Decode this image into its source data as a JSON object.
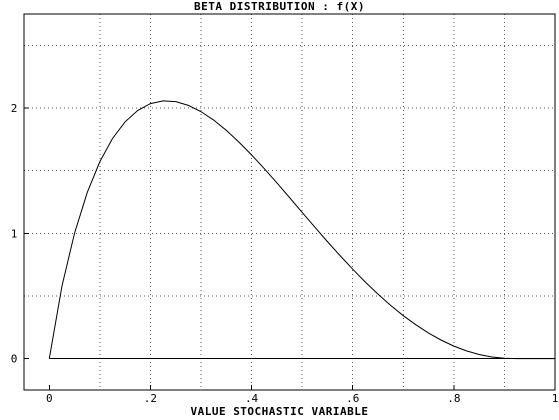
{
  "chart_data": {
    "type": "line",
    "title": "BETA DISTRIBUTION : f(X)",
    "xlabel": "VALUE STOCHASTIC VARIABLE",
    "ylabel": "",
    "xlim": [
      -0.05,
      1.0
    ],
    "ylim": [
      -0.25,
      2.75
    ],
    "x_ticks": [
      {
        "value": 0,
        "label": "0"
      },
      {
        "value": 0.2,
        "label": ".2"
      },
      {
        "value": 0.4,
        "label": ".4"
      },
      {
        "value": 0.6,
        "label": ".6"
      },
      {
        "value": 0.8,
        "label": ".8"
      },
      {
        "value": 1.0,
        "label": "1"
      }
    ],
    "y_ticks": [
      {
        "value": 0,
        "label": "0"
      },
      {
        "value": 1,
        "label": "1"
      },
      {
        "value": 2,
        "label": "2"
      }
    ],
    "x_gridlines": [
      0.1,
      0.2,
      0.3,
      0.4,
      0.5,
      0.6,
      0.7,
      0.8,
      0.9
    ],
    "y_gridlines": [
      0.5,
      1.0,
      1.5,
      2.0,
      2.5
    ],
    "grid": true,
    "grid_style": "dotted",
    "baseline": {
      "y": 0,
      "x_from": 0,
      "x_to": 1.0
    },
    "series": [
      {
        "x": [
          0,
          0.025,
          0.05,
          0.075,
          0.1,
          0.125,
          0.15,
          0.175,
          0.2,
          0.225,
          0.25,
          0.275,
          0.3,
          0.325,
          0.35,
          0.375,
          0.4,
          0.425,
          0.45,
          0.475,
          0.5,
          0.525,
          0.55,
          0.575,
          0.6,
          0.625,
          0.65,
          0.675,
          0.7,
          0.725,
          0.75,
          0.775,
          0.8,
          0.825,
          0.85,
          0.875,
          0.9,
          0.925,
          0.95,
          0.975,
          1.0
        ],
        "y": [
          0,
          0.578,
          1.002,
          1.325,
          1.572,
          1.757,
          1.89,
          1.981,
          2.035,
          2.057,
          2.051,
          2.021,
          1.971,
          1.904,
          1.822,
          1.728,
          1.626,
          1.517,
          1.403,
          1.286,
          1.167,
          1.05,
          0.934,
          0.822,
          0.714,
          0.611,
          0.515,
          0.425,
          0.343,
          0.27,
          0.204,
          0.148,
          0.1,
          0.062,
          0.033,
          0.013,
          0.003,
          0.0004,
          1e-05,
          0.0,
          0.0
        ]
      }
    ],
    "colors": {
      "line": "#000000",
      "grid": "#555555",
      "background": "#ffffff"
    }
  }
}
